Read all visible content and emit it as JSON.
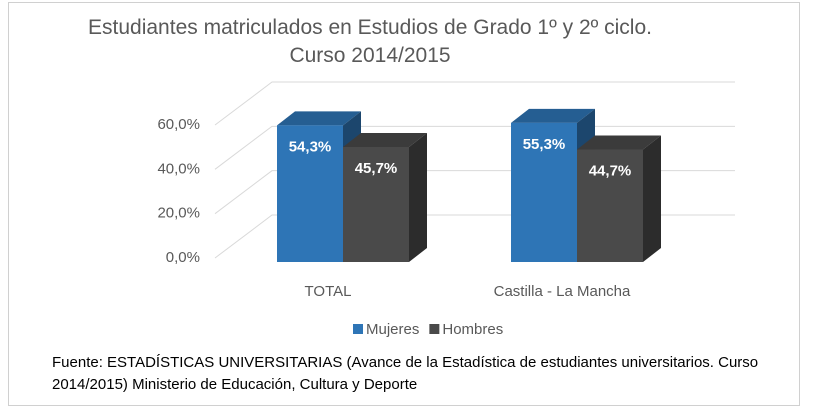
{
  "chart_data": {
    "type": "bar3d",
    "title": "Estudiantes matriculados en Estudios de Grado 1º y 2º ciclo. Curso 2014/2015",
    "categories": [
      "TOTAL",
      "Castilla - La Mancha"
    ],
    "series": [
      {
        "name": "Mujeres",
        "color": "#2e75b6",
        "values": [
          54.3,
          55.3
        ],
        "value_labels": [
          "54,3%",
          "55,3%"
        ]
      },
      {
        "name": "Hombres",
        "color": "#4a4a4a",
        "values": [
          45.7,
          44.7
        ],
        "value_labels": [
          "45,7%",
          "44,7%"
        ]
      }
    ],
    "ylim": [
      0,
      60
    ],
    "yticks": [
      {
        "value": 0,
        "label": "0,0%"
      },
      {
        "value": 20,
        "label": "20,0%"
      },
      {
        "value": 40,
        "label": "40,0%"
      },
      {
        "value": 60,
        "label": "60,0%"
      }
    ],
    "grid": true,
    "legend": "bottom",
    "source": "Fuente: ESTADÍSTICAS UNIVERSITARIAS (Avance de la Estadística de estudiantes universitarios. Curso 2014/2015) Ministerio de Educación, Cultura y Deporte"
  }
}
